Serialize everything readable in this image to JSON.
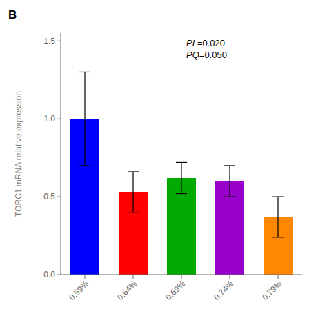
{
  "chart_data": {
    "type": "bar",
    "title": "B",
    "categories": [
      "0.59%",
      "0.64%",
      "0.69%",
      "0.74%",
      "0.79%"
    ],
    "values": [
      1.0,
      0.53,
      0.62,
      0.6,
      0.37
    ],
    "errors": [
      0.3,
      0.13,
      0.1,
      0.1,
      0.13
    ],
    "colors": [
      "#0000FF",
      "#FF0000",
      "#00AA00",
      "#9900CC",
      "#FF8800"
    ],
    "ylabel": "TORC1 mRNA relative expression",
    "ylim": [
      0,
      1.55
    ],
    "yticks": [
      {
        "value": 0,
        "label": "0.0"
      },
      0.5,
      {
        "value": 1,
        "label": "1.0"
      },
      1.5
    ],
    "annotations": [
      "PL=0.020",
      "PQ=0.050"
    ],
    "grid": false
  }
}
